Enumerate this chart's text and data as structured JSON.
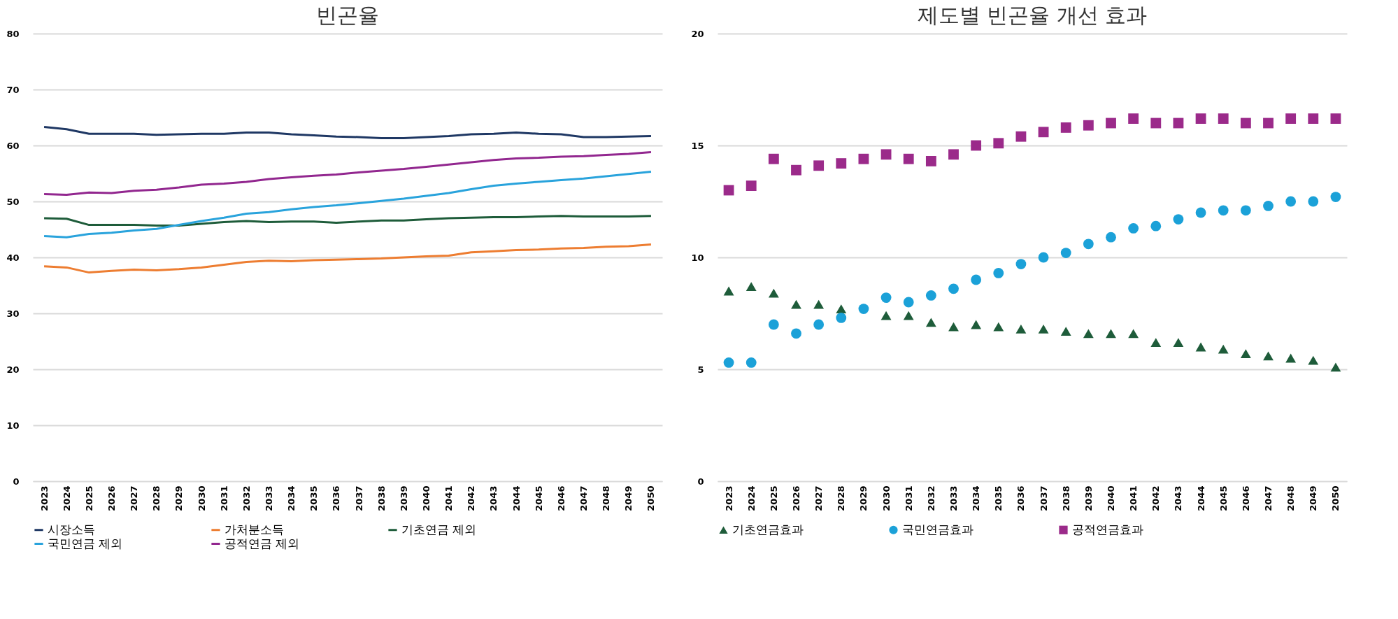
{
  "chart_data": [
    {
      "type": "line",
      "title": "빈곤율",
      "categories": [
        "2023",
        "2024",
        "2025",
        "2026",
        "2027",
        "2028",
        "2029",
        "2030",
        "2031",
        "2032",
        "2033",
        "2034",
        "2035",
        "2036",
        "2037",
        "2038",
        "2039",
        "2040",
        "2041",
        "2042",
        "2043",
        "2044",
        "2045",
        "2046",
        "2047",
        "2048",
        "2049",
        "2050"
      ],
      "ylim": [
        0,
        80
      ],
      "yticks": [
        0,
        10,
        20,
        30,
        40,
        50,
        60,
        70,
        80
      ],
      "grid": "y",
      "legend": "bottom",
      "marker": "none",
      "line_style": "solid",
      "series": [
        {
          "name": "시장소득",
          "color": "#1f3864",
          "values": [
            63.3,
            62.9,
            62.1,
            62.1,
            62.1,
            61.9,
            62.0,
            62.1,
            62.1,
            62.3,
            62.3,
            62.0,
            61.8,
            61.6,
            61.5,
            61.3,
            61.3,
            61.5,
            61.7,
            62.0,
            62.1,
            62.3,
            62.1,
            62.0,
            61.5,
            61.5,
            61.6,
            61.7
          ]
        },
        {
          "name": "가처분소득",
          "color": "#ed7d31",
          "values": [
            38.4,
            38.2,
            37.3,
            37.6,
            37.8,
            37.7,
            37.9,
            38.2,
            38.7,
            39.2,
            39.4,
            39.3,
            39.5,
            39.6,
            39.7,
            39.8,
            40.0,
            40.2,
            40.3,
            40.9,
            41.1,
            41.3,
            41.4,
            41.6,
            41.7,
            41.9,
            42.0,
            42.3
          ]
        },
        {
          "name": "기초연금 제외",
          "color": "#1e5c3a",
          "values": [
            47.0,
            46.9,
            45.8,
            45.8,
            45.8,
            45.7,
            45.7,
            46.0,
            46.3,
            46.5,
            46.3,
            46.4,
            46.4,
            46.2,
            46.4,
            46.6,
            46.6,
            46.8,
            47.0,
            47.1,
            47.2,
            47.2,
            47.3,
            47.4,
            47.3,
            47.3,
            47.3,
            47.4
          ]
        },
        {
          "name": "국민연금 제외",
          "color": "#29a3dc",
          "values": [
            43.8,
            43.6,
            44.2,
            44.4,
            44.8,
            45.1,
            45.8,
            46.5,
            47.1,
            47.8,
            48.1,
            48.6,
            49.0,
            49.3,
            49.7,
            50.1,
            50.5,
            51.0,
            51.5,
            52.2,
            52.8,
            53.2,
            53.5,
            53.8,
            54.1,
            54.5,
            54.9,
            55.3
          ]
        },
        {
          "name": "공적연금 제외",
          "color": "#92278f",
          "values": [
            51.3,
            51.2,
            51.6,
            51.5,
            51.9,
            52.1,
            52.5,
            53.0,
            53.2,
            53.5,
            54.0,
            54.3,
            54.6,
            54.8,
            55.2,
            55.5,
            55.8,
            56.2,
            56.6,
            57.0,
            57.4,
            57.7,
            57.8,
            58.0,
            58.1,
            58.3,
            58.5,
            58.8
          ]
        }
      ]
    },
    {
      "type": "scatter",
      "title": "제도별 빈곤율 개선 효과",
      "categories": [
        "2023",
        "2024",
        "2025",
        "2026",
        "2027",
        "2028",
        "2029",
        "2030",
        "2031",
        "2032",
        "2033",
        "2034",
        "2035",
        "2036",
        "2037",
        "2038",
        "2039",
        "2040",
        "2041",
        "2042",
        "2043",
        "2044",
        "2045",
        "2046",
        "2047",
        "2048",
        "2049",
        "2050"
      ],
      "ylim": [
        0,
        20
      ],
      "yticks": [
        0,
        5,
        10,
        15,
        20
      ],
      "grid": "y",
      "legend": "bottom",
      "series": [
        {
          "name": "기초연금효과",
          "color": "#1e5c3a",
          "marker": "triangle",
          "values": [
            8.5,
            8.7,
            8.4,
            7.9,
            7.9,
            7.7,
            null,
            7.4,
            7.4,
            7.1,
            6.9,
            7.0,
            6.9,
            6.8,
            6.8,
            6.7,
            6.6,
            6.6,
            6.6,
            6.2,
            6.2,
            6.0,
            5.9,
            5.7,
            5.6,
            5.5,
            5.4,
            5.1
          ]
        },
        {
          "name": "국민연금효과",
          "color": "#1ba1d8",
          "marker": "circle",
          "values": [
            5.3,
            5.3,
            7.0,
            6.6,
            7.0,
            7.3,
            7.7,
            8.2,
            8.0,
            8.3,
            8.6,
            9.0,
            9.3,
            9.7,
            10.0,
            10.2,
            10.6,
            10.9,
            11.3,
            11.4,
            11.7,
            12.0,
            12.1,
            12.1,
            12.3,
            12.5,
            12.5,
            12.7
          ]
        },
        {
          "name": "공적연금효과",
          "color": "#9b2a8a",
          "marker": "square",
          "values": [
            13.0,
            13.2,
            14.4,
            13.9,
            14.1,
            14.2,
            14.4,
            14.6,
            14.4,
            14.3,
            14.6,
            15.0,
            15.1,
            15.4,
            15.6,
            15.8,
            15.9,
            16.0,
            16.2,
            16.0,
            16.0,
            16.2,
            16.2,
            16.0,
            16.0,
            16.2,
            16.2,
            16.2
          ]
        }
      ]
    }
  ]
}
